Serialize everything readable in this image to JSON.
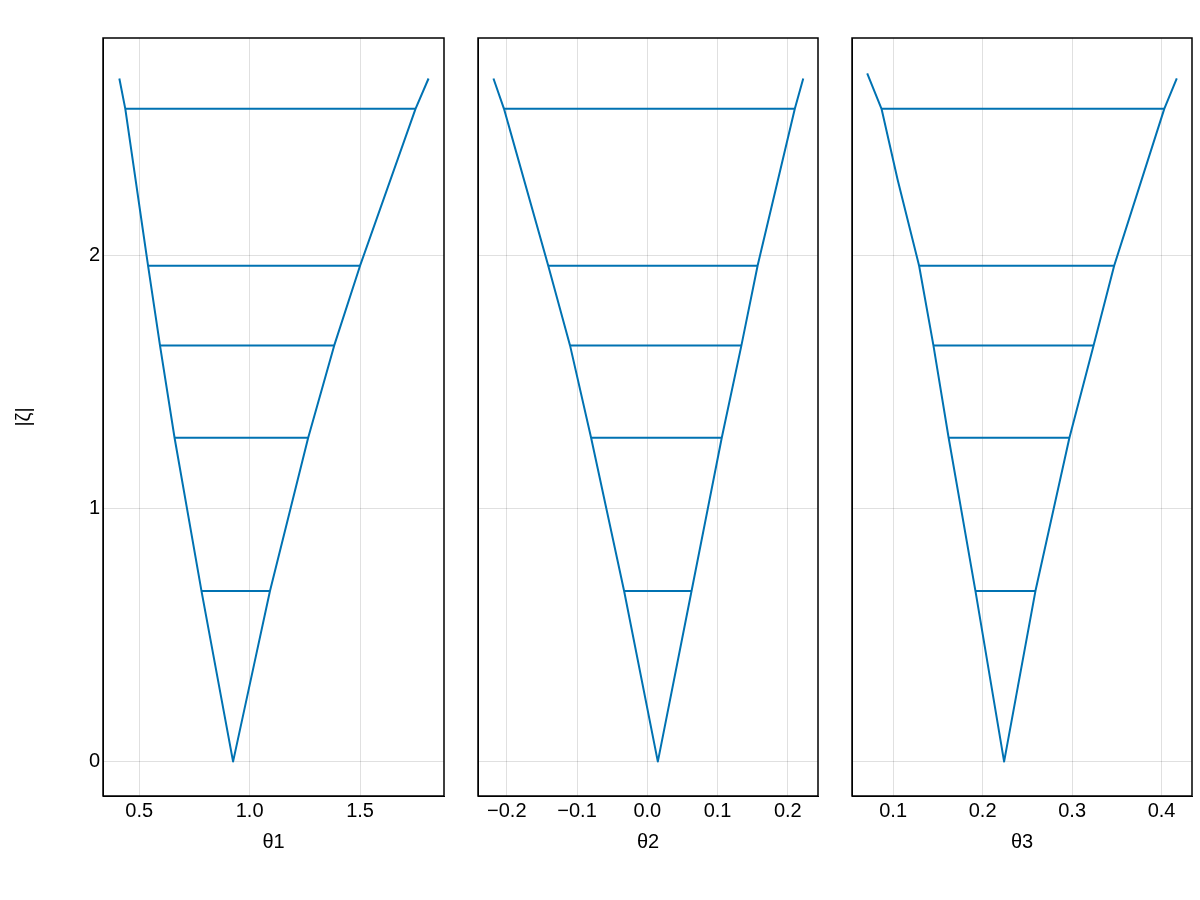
{
  "chart_data": [
    {
      "type": "line",
      "xlabel": "θ1",
      "ylabel": "|ζ|",
      "xlim": [
        0.336,
        1.88
      ],
      "ylim": [
        -0.136,
        2.86
      ],
      "xticks": [
        0.5,
        {
          "value": 1,
          "label": "1.0"
        },
        1.5
      ],
      "yticks": [
        0,
        1,
        2
      ],
      "grid": true,
      "marker": "none",
      "series": [
        {
          "color": "#0072b2",
          "x": [
            0.41,
            0.437,
            0.54,
            0.594,
            0.66,
            0.782,
            0.925,
            1.092,
            1.265,
            1.383,
            1.5,
            1.751,
            1.81
          ],
          "values": [
            2.7,
            2.58,
            1.96,
            1.645,
            1.28,
            0.674,
            0,
            0.674,
            1.28,
            1.645,
            1.96,
            2.58,
            2.7
          ]
        },
        {
          "color": "#0072b2",
          "x": [
            0.437,
            1.751
          ],
          "values": [
            2.58,
            2.58
          ]
        },
        {
          "color": "#0072b2",
          "x": [
            0.54,
            1.5
          ],
          "values": [
            1.96,
            1.96
          ]
        },
        {
          "color": "#0072b2",
          "x": [
            0.594,
            1.383
          ],
          "values": [
            1.645,
            1.645
          ]
        },
        {
          "color": "#0072b2",
          "x": [
            0.66,
            1.265
          ],
          "values": [
            1.28,
            1.28
          ]
        },
        {
          "color": "#0072b2",
          "x": [
            0.782,
            1.092
          ],
          "values": [
            0.674,
            0.674
          ]
        }
      ]
    },
    {
      "type": "line",
      "xlabel": "θ2",
      "xlim": [
        -0.241,
        0.243
      ],
      "ylim": [
        -0.136,
        2.86
      ],
      "xticks": [
        {
          "value": -0.2,
          "label": "−0.2"
        },
        {
          "value": -0.1,
          "label": "−0.1"
        },
        {
          "value": 0,
          "label": "0.0"
        },
        0.1,
        0.2
      ],
      "yticks": [
        0,
        1,
        2
      ],
      "tick_labels": "x",
      "grid": true,
      "marker": "none",
      "series": [
        {
          "color": "#0072b2",
          "x": [
            -0.219,
            -0.204,
            -0.141,
            -0.11,
            -0.08,
            -0.033,
            0.015,
            0.063,
            0.106,
            0.134,
            0.157,
            0.21,
            0.222
          ],
          "values": [
            2.7,
            2.58,
            1.96,
            1.645,
            1.28,
            0.674,
            0,
            0.674,
            1.28,
            1.645,
            1.96,
            2.58,
            2.7
          ]
        },
        {
          "color": "#0072b2",
          "x": [
            -0.204,
            0.21
          ],
          "values": [
            2.58,
            2.58
          ]
        },
        {
          "color": "#0072b2",
          "x": [
            -0.141,
            0.157
          ],
          "values": [
            1.96,
            1.96
          ]
        },
        {
          "color": "#0072b2",
          "x": [
            -0.11,
            0.134
          ],
          "values": [
            1.645,
            1.645
          ]
        },
        {
          "color": "#0072b2",
          "x": [
            -0.08,
            0.106
          ],
          "values": [
            1.28,
            1.28
          ]
        },
        {
          "color": "#0072b2",
          "x": [
            -0.033,
            0.063
          ],
          "values": [
            0.674,
            0.674
          ]
        }
      ]
    },
    {
      "type": "line",
      "xlabel": "θ3",
      "xlim": [
        0.054,
        0.434
      ],
      "ylim": [
        -0.136,
        2.86
      ],
      "xticks": [
        0.1,
        0.2,
        0.3,
        0.4
      ],
      "yticks": [
        0,
        1,
        2
      ],
      "tick_labels": "x",
      "grid": true,
      "marker": "none",
      "series": [
        {
          "color": "#0072b2",
          "x": [
            0.071,
            0.087,
            0.105,
            0.129,
            0.145,
            0.162,
            0.192,
            0.224,
            0.259,
            0.297,
            0.324,
            0.347,
            0.403,
            0.417
          ],
          "values": [
            2.72,
            2.58,
            2.3,
            1.96,
            1.645,
            1.28,
            0.674,
            0,
            0.674,
            1.28,
            1.645,
            1.96,
            2.58,
            2.7
          ]
        },
        {
          "color": "#0072b2",
          "x": [
            0.087,
            0.403
          ],
          "values": [
            2.58,
            2.58
          ]
        },
        {
          "color": "#0072b2",
          "x": [
            0.129,
            0.347
          ],
          "values": [
            1.96,
            1.96
          ]
        },
        {
          "color": "#0072b2",
          "x": [
            0.145,
            0.324
          ],
          "values": [
            1.645,
            1.645
          ]
        },
        {
          "color": "#0072b2",
          "x": [
            0.162,
            0.297
          ],
          "values": [
            1.28,
            1.28
          ]
        },
        {
          "color": "#0072b2",
          "x": [
            0.192,
            0.259
          ],
          "values": [
            0.674,
            0.674
          ]
        }
      ]
    }
  ]
}
